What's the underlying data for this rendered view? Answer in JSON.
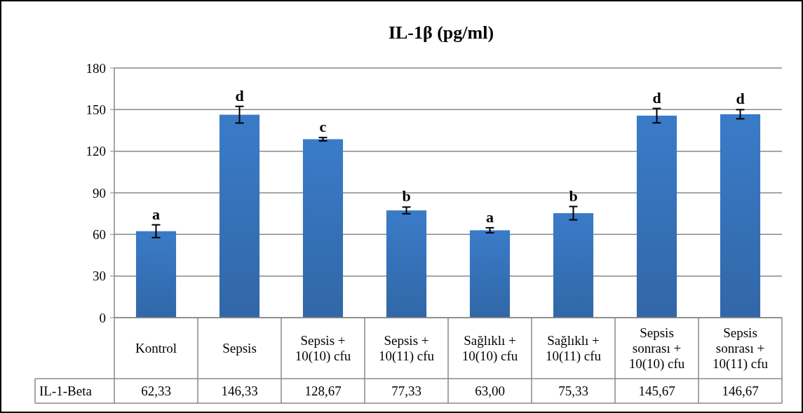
{
  "chart_data": {
    "type": "bar",
    "title": "IL-1β (pg/ml)",
    "categories": [
      "Kontrol",
      "Sepsis",
      "Sepsis + 10(10) cfu",
      "Sepsis + 10(11) cfu",
      "Sağlıklı + 10(10) cfu",
      "Sağlıklı + 10(11) cfu",
      "Sepsis sonrası + 10(10) cfu",
      "Sepsis sonrası + 10(11) cfu"
    ],
    "series": [
      {
        "name": "IL-1-Beta",
        "color": "#3a7bc8",
        "values": [
          62.33,
          146.33,
          128.67,
          77.33,
          63.0,
          75.33,
          145.67,
          146.67
        ],
        "errors": [
          4.6,
          6,
          1.2,
          2.4,
          1.8,
          4.8,
          5.2,
          3.3
        ],
        "value_labels": [
          "62,33",
          "146,33",
          "128,67",
          "77,33",
          "63,00",
          "75,33",
          "145,67",
          "146,67"
        ]
      }
    ],
    "ylim": [
      0,
      180
    ],
    "yticks": [
      0,
      30,
      60,
      90,
      120,
      150,
      180
    ],
    "grid": "y",
    "legend": "bottom",
    "annotations": [
      {
        "text": "a",
        "x": "Kontrol",
        "y": 62.33
      },
      {
        "text": "d",
        "x": "Sepsis",
        "y": 146.33
      },
      {
        "text": "c",
        "x": "Sepsis + 10(10) cfu",
        "y": 128.67
      },
      {
        "text": "b",
        "x": "Sepsis + 10(11) cfu",
        "y": 77.33
      },
      {
        "text": "a",
        "x": "Sağlıklı + 10(10) cfu",
        "y": 63.0
      },
      {
        "text": "b",
        "x": "Sağlıklı + 10(11) cfu",
        "y": 75.33
      },
      {
        "text": "d",
        "x": "Sepsis sonrası + 10(10) cfu",
        "y": 145.67
      },
      {
        "text": "d",
        "x": "Sepsis sonrası + 10(11) cfu",
        "y": 146.67
      }
    ]
  }
}
